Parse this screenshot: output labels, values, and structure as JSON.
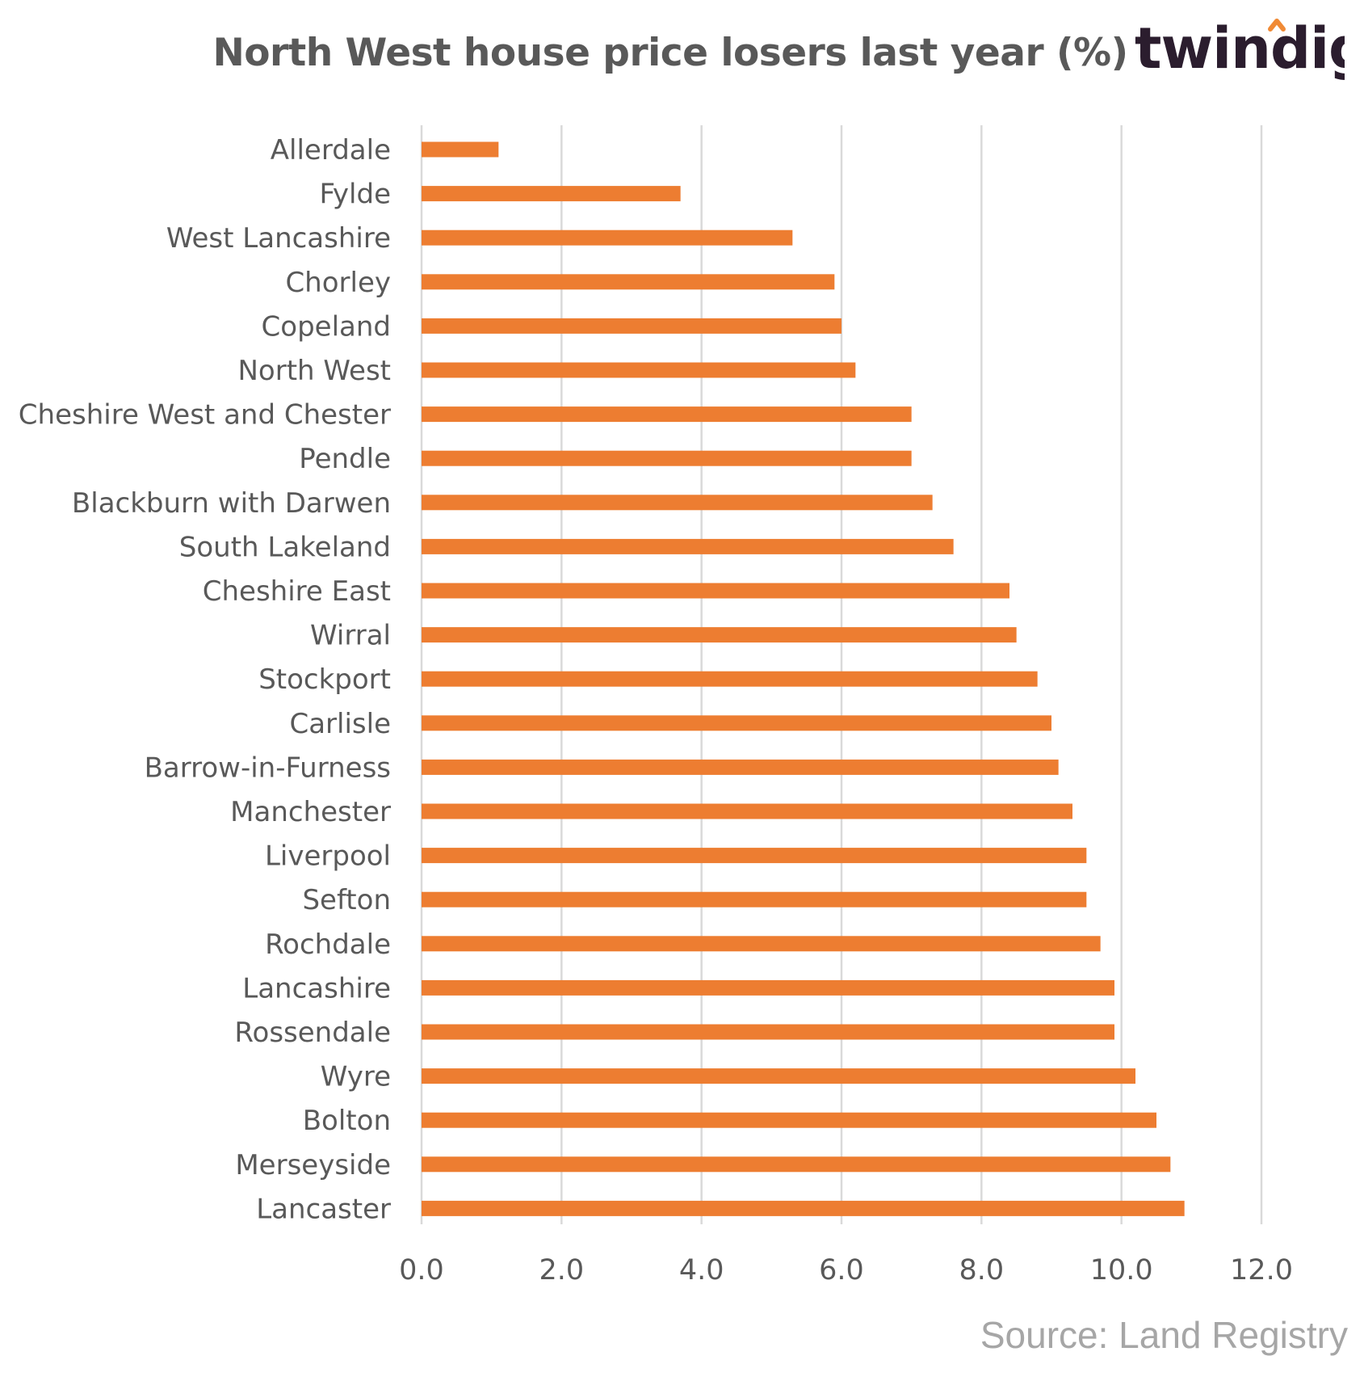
{
  "brand": {
    "name": "twindig",
    "text_color": "#2b1d2e",
    "accent_color": "#f08a35"
  },
  "footer": {
    "source": "Source: Land Registry"
  },
  "chart_data": {
    "type": "bar",
    "orientation": "horizontal",
    "title": "North West house price losers last year (%)",
    "xlabel": "",
    "ylabel": "",
    "categories": [
      "Allerdale",
      "Fylde",
      "West Lancashire",
      "Chorley",
      "Copeland",
      "North West",
      "Cheshire West and Chester",
      "Pendle",
      "Blackburn with Darwen",
      "South Lakeland",
      "Cheshire East",
      "Wirral",
      "Stockport",
      "Carlisle",
      "Barrow-in-Furness",
      "Manchester",
      "Liverpool",
      "Sefton",
      "Rochdale",
      "Lancashire",
      "Rossendale",
      "Wyre",
      "Bolton",
      "Merseyside",
      "Lancaster"
    ],
    "values": [
      1.1,
      3.7,
      5.3,
      5.9,
      6.0,
      6.2,
      7.0,
      7.0,
      7.3,
      7.6,
      8.4,
      8.5,
      8.8,
      9.0,
      9.1,
      9.3,
      9.5,
      9.5,
      9.7,
      9.9,
      9.9,
      10.2,
      10.5,
      10.7,
      10.9
    ],
    "xlim": [
      0,
      12
    ],
    "xticks": [
      "0.0",
      "2.0",
      "4.0",
      "6.0",
      "8.0",
      "10.0",
      "12.0"
    ],
    "grid": true,
    "legend": "none",
    "bar_color": "#ed7d31",
    "grid_color": "#d9d9d9",
    "label_color": "#595959"
  }
}
